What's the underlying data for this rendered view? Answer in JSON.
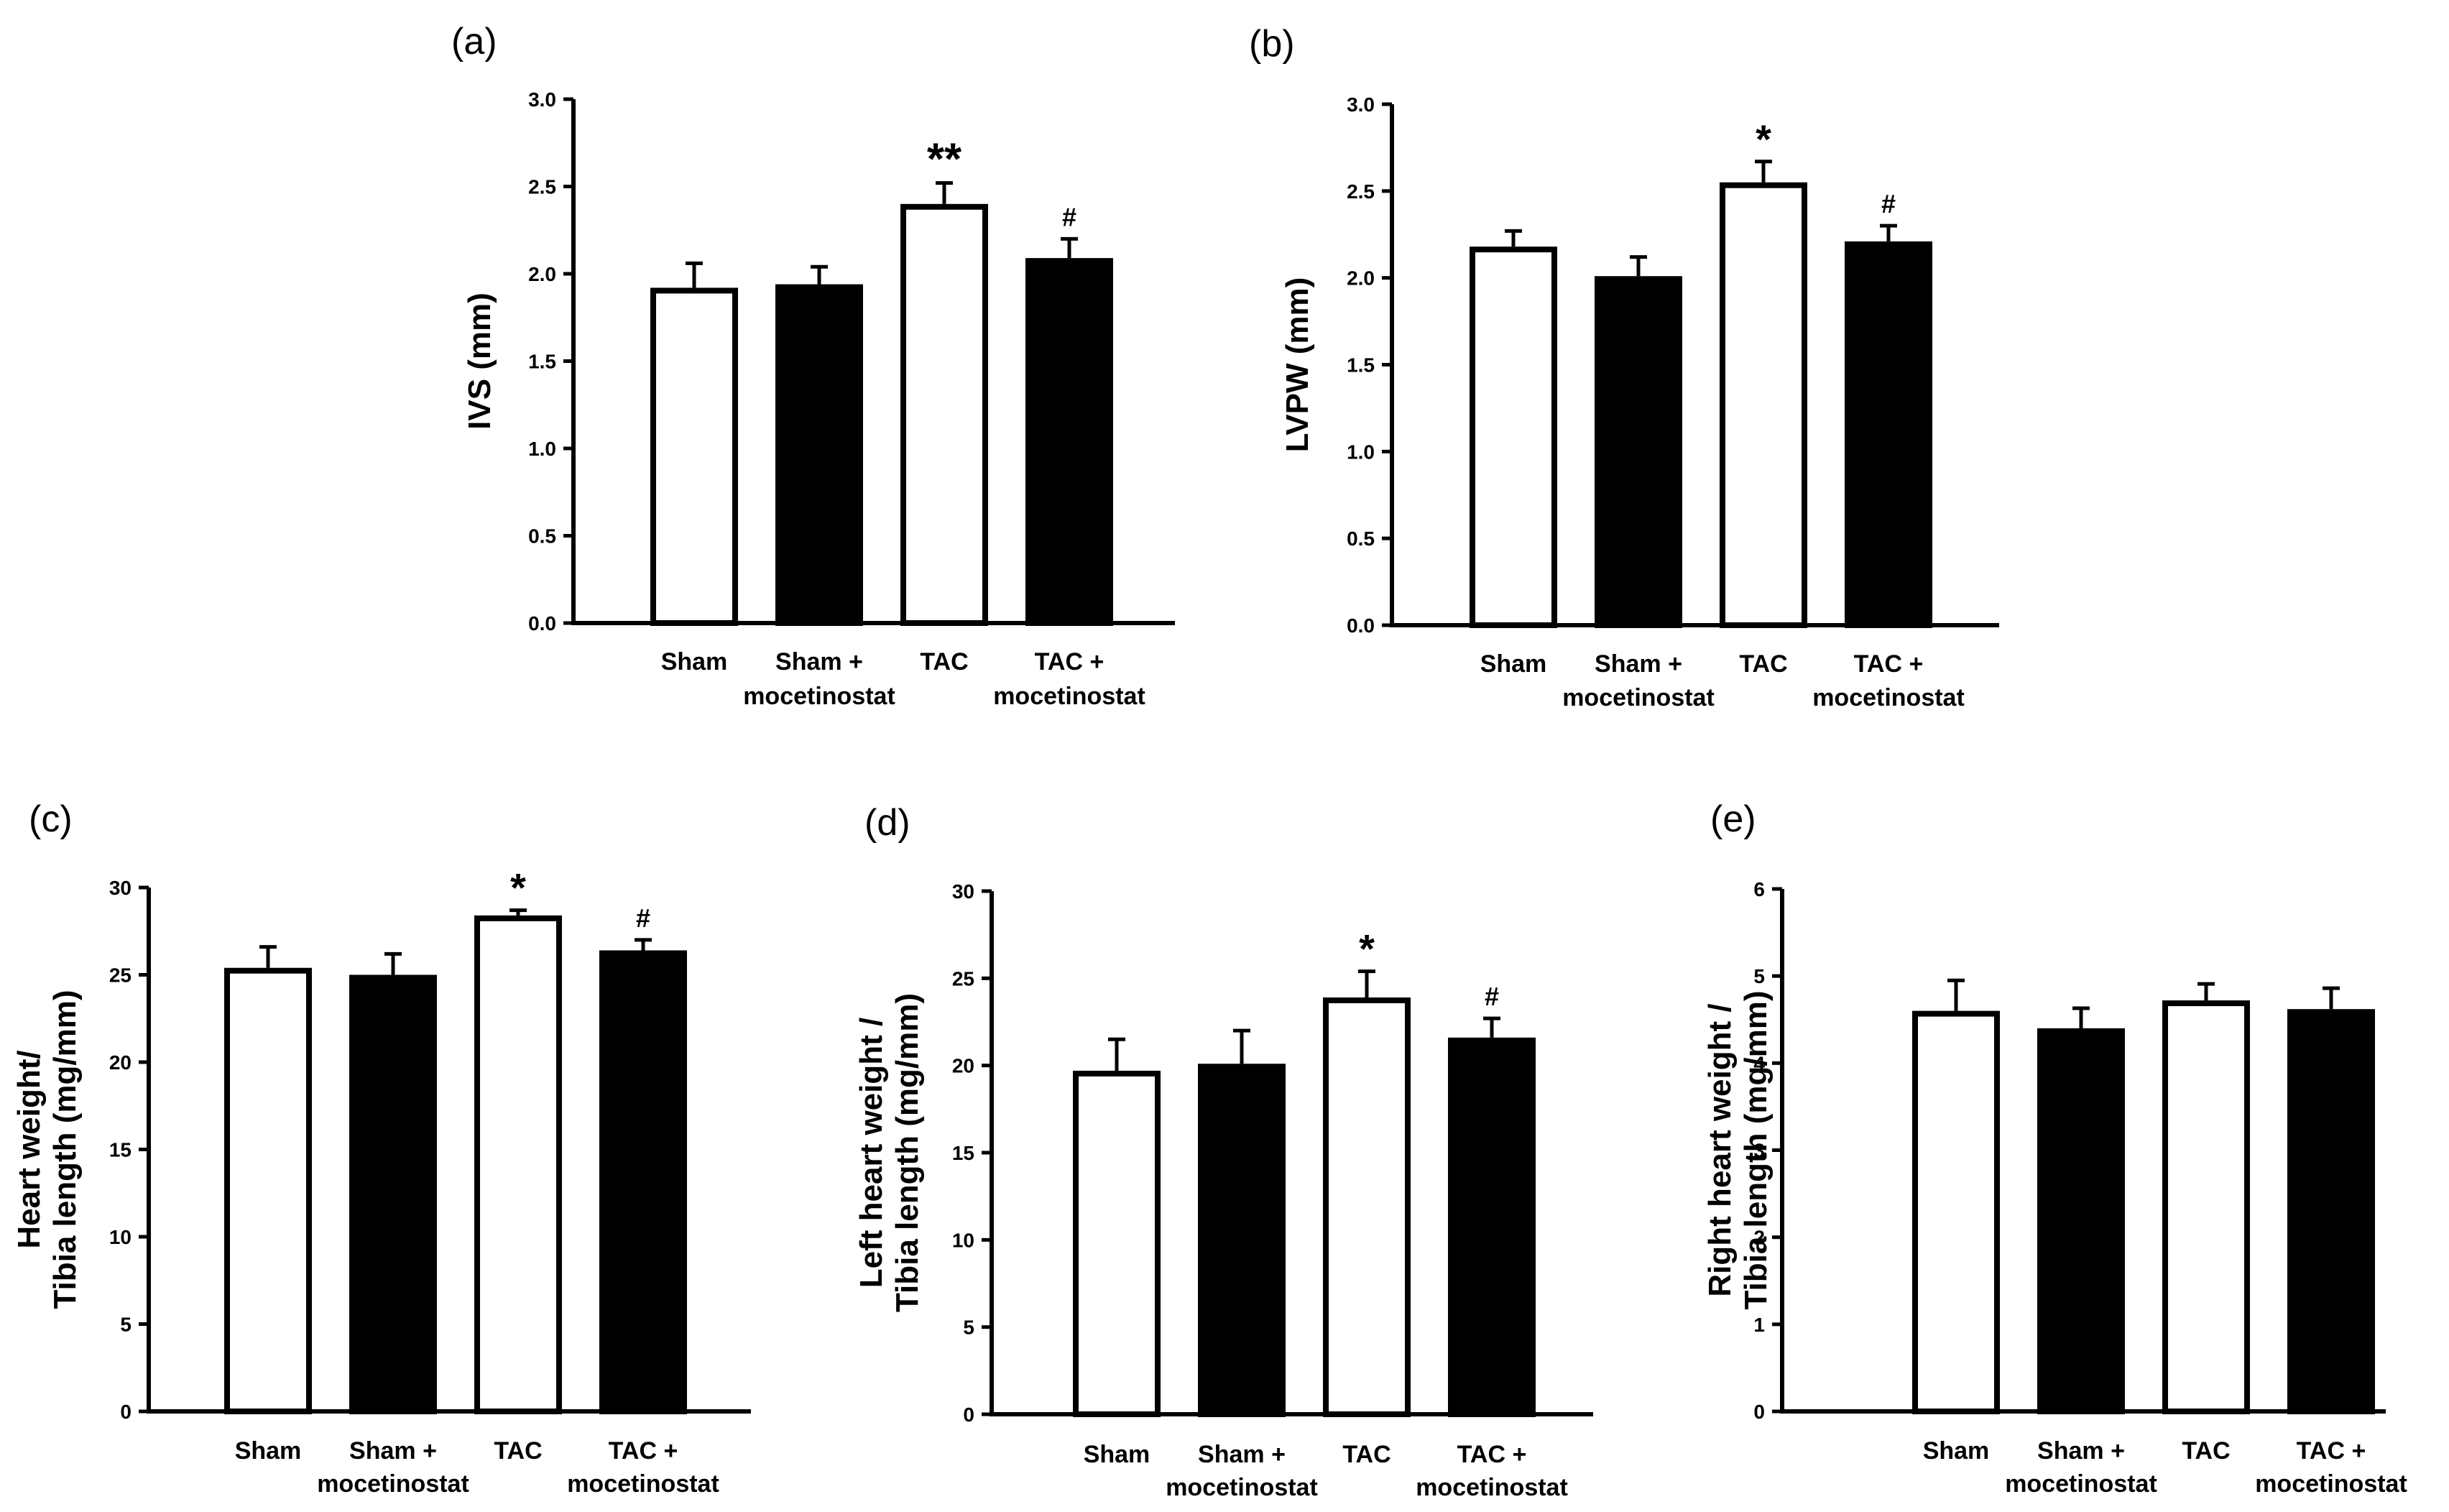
{
  "chart_data": [
    {
      "panel": "(a)",
      "type": "bar",
      "ylabel": [
        "IVS (mm)"
      ],
      "categories": [
        [
          "Sham"
        ],
        [
          "Sham +",
          "mocetinostat"
        ],
        [
          "TAC"
        ],
        [
          "TAC +",
          "mocetinostat"
        ]
      ],
      "values": [
        1.92,
        1.94,
        2.4,
        2.09
      ],
      "errors": [
        0.14,
        0.1,
        0.12,
        0.11
      ],
      "significance": [
        "",
        "",
        "**",
        "#"
      ],
      "fill": [
        "#ffffff",
        "#000000",
        "#ffffff",
        "#000000"
      ],
      "ylim": [
        0,
        3.0
      ],
      "yticks": [
        "0.0",
        "0.5",
        "1.0",
        "1.5",
        "2.0",
        "2.5",
        "3.0"
      ]
    },
    {
      "panel": "(b)",
      "type": "bar",
      "ylabel": [
        "LVPW (mm)"
      ],
      "categories": [
        [
          "Sham"
        ],
        [
          "Sham +",
          "mocetinostat"
        ],
        [
          "TAC"
        ],
        [
          "TAC +",
          "mocetinostat"
        ]
      ],
      "values": [
        2.18,
        2.01,
        2.55,
        2.21
      ],
      "errors": [
        0.09,
        0.11,
        0.12,
        0.09
      ],
      "significance": [
        "",
        "",
        "*",
        "#"
      ],
      "fill": [
        "#ffffff",
        "#000000",
        "#ffffff",
        "#000000"
      ],
      "ylim": [
        0,
        3.0
      ],
      "yticks": [
        "0.0",
        "0.5",
        "1.0",
        "1.5",
        "2.0",
        "2.5",
        "3.0"
      ]
    },
    {
      "panel": "(c)",
      "type": "bar",
      "ylabel": [
        "Heart weight/",
        "Tibia length (mg/mm)"
      ],
      "categories": [
        [
          "Sham"
        ],
        [
          "Sham +",
          "mocetinostat"
        ],
        [
          "TAC"
        ],
        [
          "TAC +",
          "mocetinostat"
        ]
      ],
      "values": [
        25.4,
        25.0,
        28.4,
        26.4
      ],
      "errors": [
        1.2,
        1.2,
        0.3,
        0.6
      ],
      "significance": [
        "",
        "",
        "*",
        "#"
      ],
      "fill": [
        "#ffffff",
        "#000000",
        "#ffffff",
        "#000000"
      ],
      "ylim": [
        0,
        30
      ],
      "yticks": [
        "0",
        "5",
        "10",
        "15",
        "20",
        "25",
        "30"
      ]
    },
    {
      "panel": "(d)",
      "type": "bar",
      "ylabel": [
        "Left heart weight /",
        "Tibia length (mg/mm)"
      ],
      "categories": [
        [
          "Sham"
        ],
        [
          "Sham +",
          "mocetinostat"
        ],
        [
          "TAC"
        ],
        [
          "TAC +",
          "mocetinostat"
        ]
      ],
      "values": [
        19.7,
        20.1,
        23.9,
        21.6
      ],
      "errors": [
        1.8,
        1.9,
        1.5,
        1.1
      ],
      "significance": [
        "",
        "",
        "*",
        "#"
      ],
      "fill": [
        "#ffffff",
        "#000000",
        "#ffffff",
        "#000000"
      ],
      "ylim": [
        0,
        30
      ],
      "yticks": [
        "0",
        "5",
        "10",
        "15",
        "20",
        "25",
        "30"
      ]
    },
    {
      "panel": "(e)",
      "type": "bar",
      "ylabel": [
        "Right heart weight /",
        "Tibia length (mg/mm)"
      ],
      "categories": [
        [
          "Sham"
        ],
        [
          "Sham +",
          "mocetinostat"
        ],
        [
          "TAC"
        ],
        [
          "TAC +",
          "mocetinostat"
        ]
      ],
      "values": [
        4.6,
        4.4,
        4.72,
        4.62
      ],
      "errors": [
        0.35,
        0.23,
        0.19,
        0.24
      ],
      "significance": [
        "",
        "",
        "",
        ""
      ],
      "fill": [
        "#ffffff",
        "#000000",
        "#ffffff",
        "#000000"
      ],
      "ylim": [
        0,
        6
      ],
      "yticks": [
        "0",
        "1",
        "2",
        "3",
        "4",
        "5",
        "6"
      ]
    }
  ]
}
